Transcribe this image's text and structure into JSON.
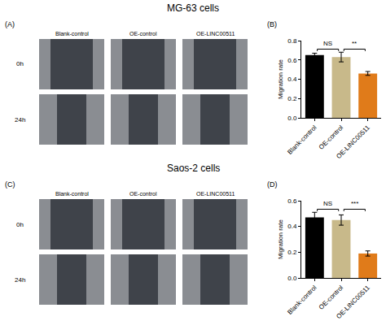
{
  "figures": [
    {
      "title": "MG-63 cells",
      "image_panel": {
        "label": "(A)",
        "columns": [
          "Blank-control",
          "OE-control",
          "OE-LINC00511"
        ],
        "rows": [
          "0h",
          "24h"
        ]
      }
    },
    {
      "title": "Saos-2 cells",
      "image_panel": {
        "label": "(C)",
        "columns": [
          "Blank-control",
          "OE-control",
          "OE-LINC00511"
        ],
        "rows": [
          "0h",
          "24h"
        ]
      }
    }
  ],
  "chart_data": [
    {
      "type": "bar",
      "panel_label": "(B)",
      "y_label": "Migration rate",
      "categories": [
        "Blank-control",
        "OE-control",
        "OE-LINC00511"
      ],
      "values": [
        0.65,
        0.63,
        0.46
      ],
      "errors": [
        0.02,
        0.05,
        0.02
      ],
      "colors": [
        "#000000",
        "#c8b98a",
        "#e07b1a"
      ],
      "ylim": [
        0,
        0.8
      ],
      "yticks": [
        {
          "value": 0,
          "label": "0.0"
        },
        0.2,
        0.4,
        0.6,
        0.8
      ],
      "significance": [
        {
          "pair": [
            "Blank-control",
            "OE-control"
          ],
          "label": "NS"
        },
        {
          "pair": [
            "OE-control",
            "OE-LINC00511"
          ],
          "label": "**"
        }
      ]
    },
    {
      "type": "bar",
      "panel_label": "(D)",
      "y_label": "Migration rate",
      "categories": [
        "Blank-control",
        "OE-control",
        "OE-LINC00511"
      ],
      "values": [
        0.47,
        0.45,
        0.19
      ],
      "errors": [
        0.04,
        0.04,
        0.02
      ],
      "colors": [
        "#000000",
        "#c8b98a",
        "#e07b1a"
      ],
      "ylim": [
        0,
        0.6
      ],
      "yticks": [
        {
          "value": 0,
          "label": "0.0"
        },
        0.2,
        0.4,
        0.6
      ],
      "significance": [
        {
          "pair": [
            "Blank-control",
            "OE-control"
          ],
          "label": "NS"
        },
        {
          "pair": [
            "OE-control",
            "OE-LINC00511"
          ],
          "label": "***"
        }
      ]
    }
  ]
}
